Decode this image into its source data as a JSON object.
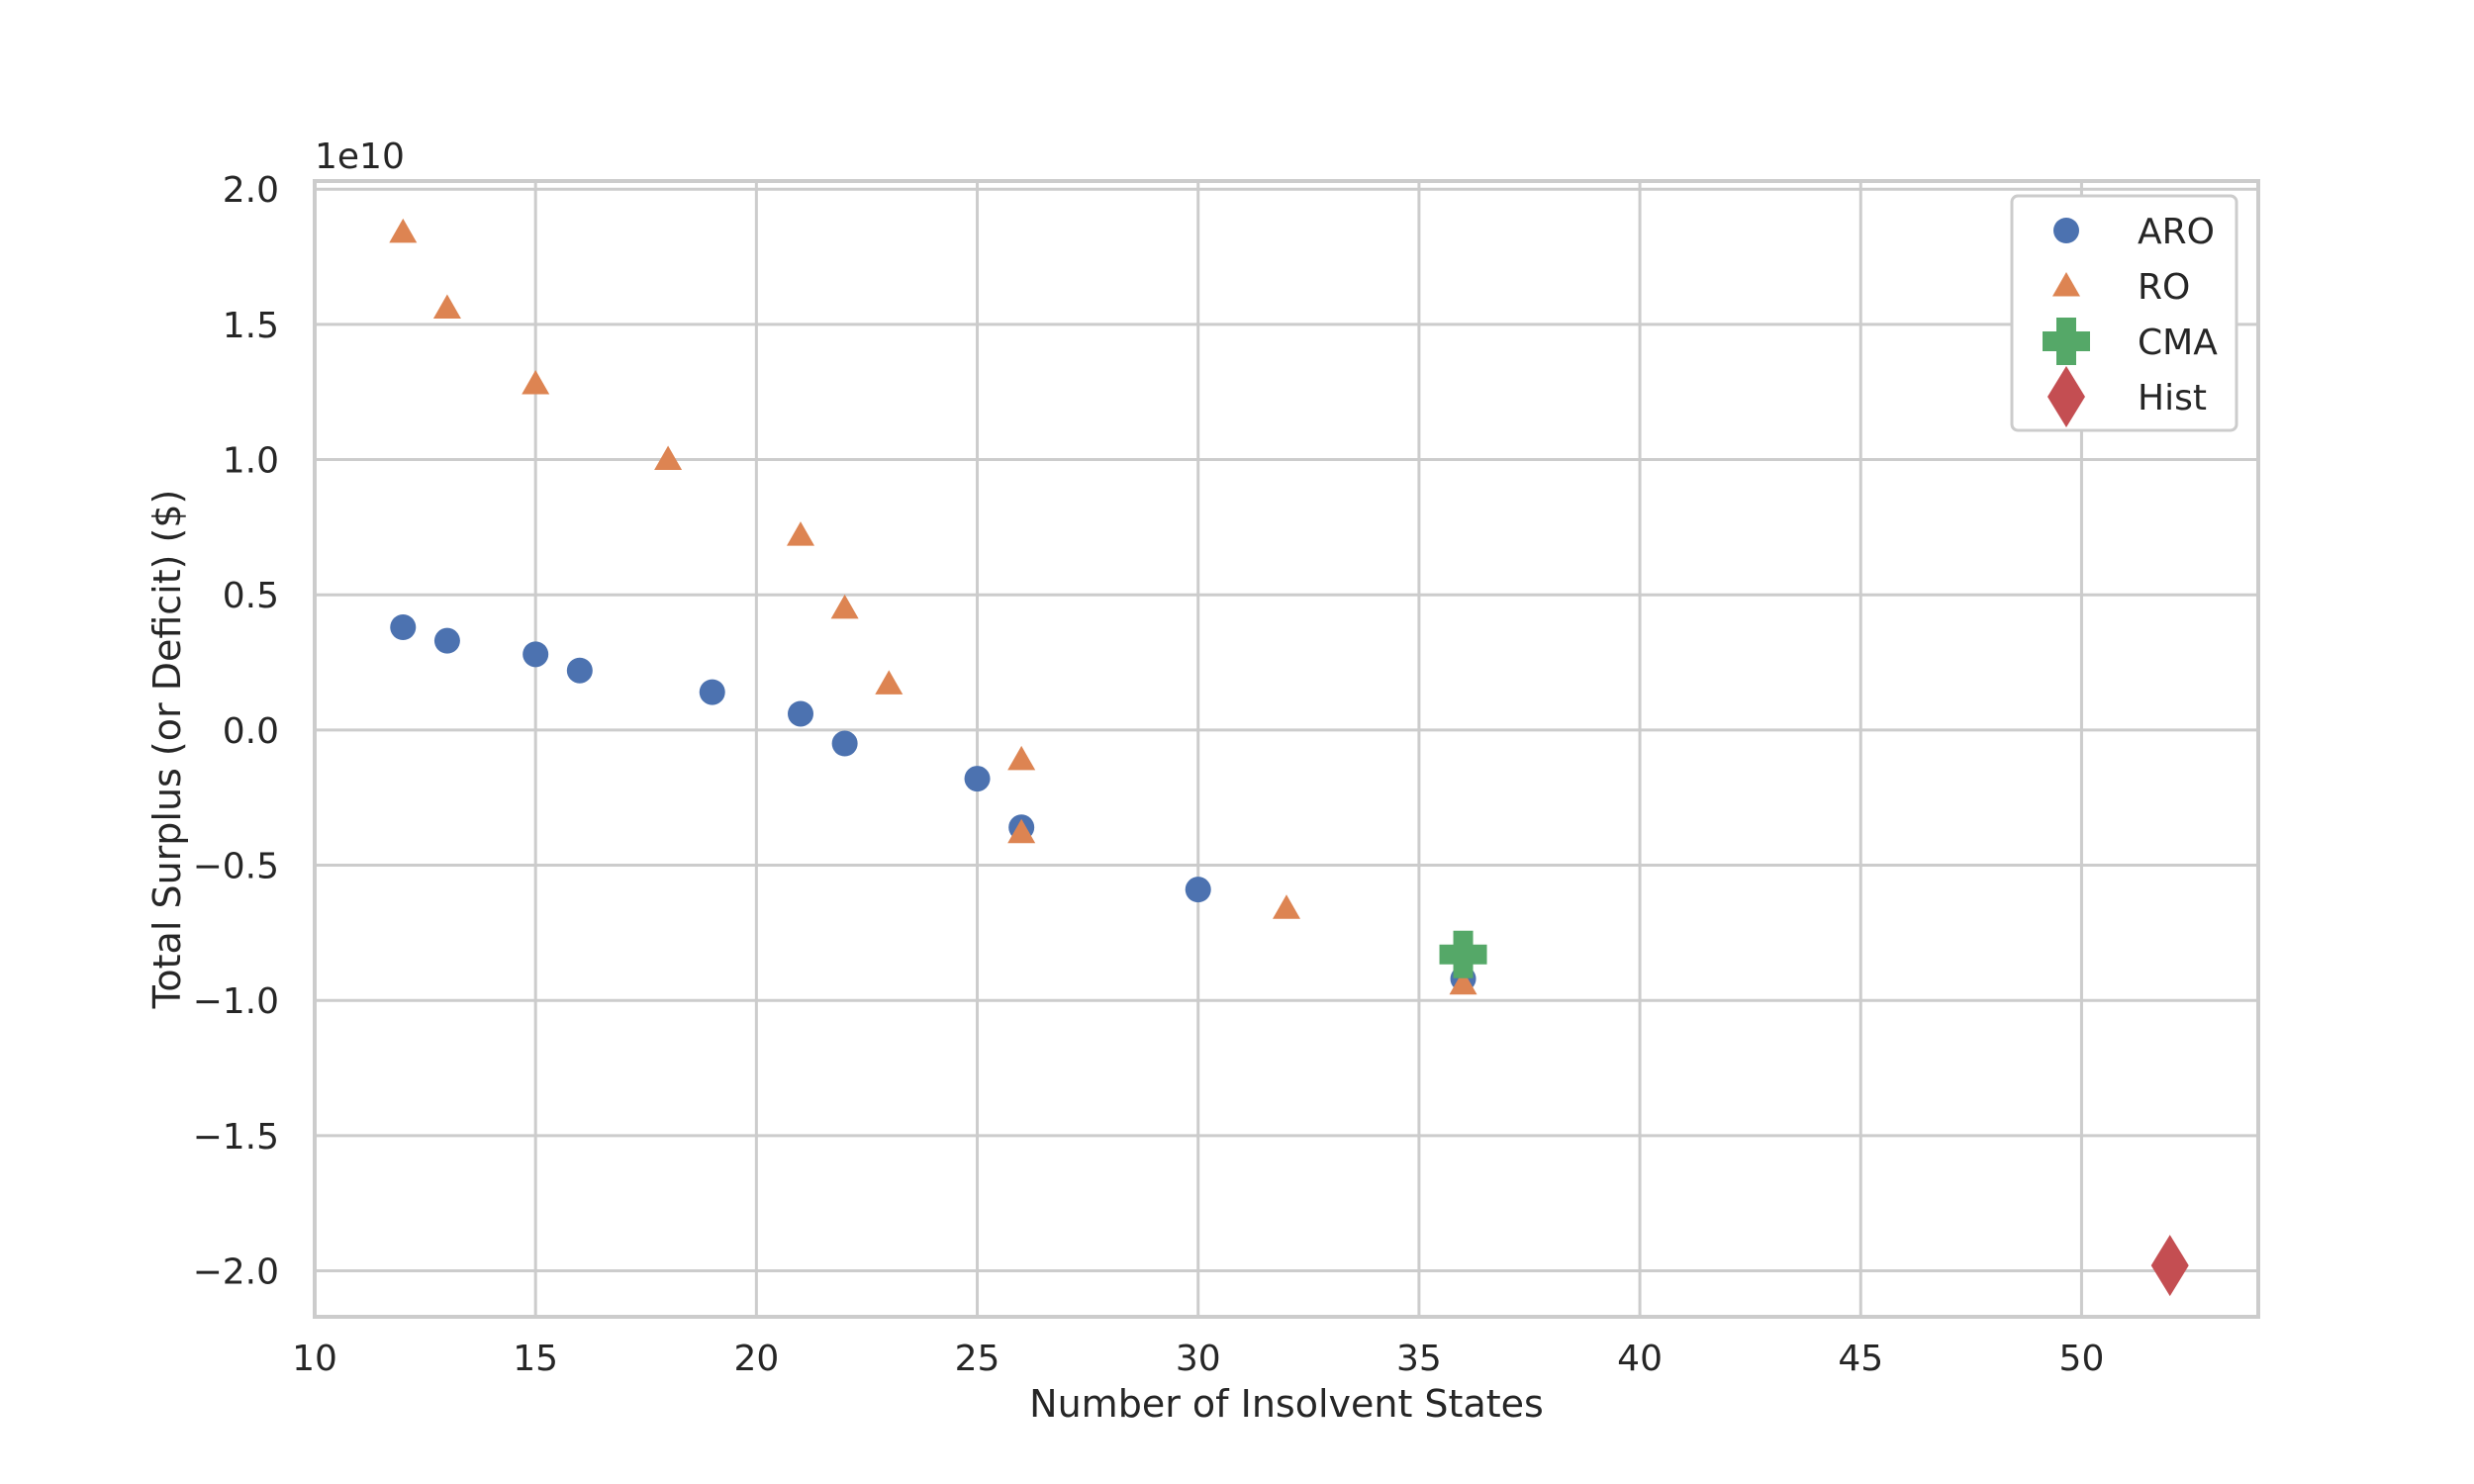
{
  "chart_data": {
    "type": "scatter",
    "xlabel": "Number of Insolvent States",
    "ylabel": "Total Surplus (or Deficit) ($)",
    "y_offset_text": "1e10",
    "xlim": [
      10,
      54
    ],
    "ylim": [
      -2.17,
      2.03
    ],
    "xticks": [
      10,
      15,
      20,
      25,
      30,
      35,
      40,
      45,
      50
    ],
    "yticks": [
      -2.0,
      -1.5,
      -1.0,
      -0.5,
      0.0,
      0.5,
      1.0,
      1.5,
      2.0
    ],
    "ytick_labels": [
      "−2.0",
      "−1.5",
      "−1.0",
      "−0.5",
      "0.0",
      "0.5",
      "1.0",
      "1.5",
      "2.0"
    ],
    "grid": true,
    "legend_position": "top-right",
    "series": [
      {
        "name": "ARO",
        "marker": "circle",
        "color": "#4c72b0",
        "points": [
          [
            12,
            0.38
          ],
          [
            13,
            0.33
          ],
          [
            15,
            0.28
          ],
          [
            16,
            0.22
          ],
          [
            19,
            0.14
          ],
          [
            21,
            0.06
          ],
          [
            22,
            -0.05
          ],
          [
            25,
            -0.18
          ],
          [
            26,
            -0.36
          ],
          [
            30,
            -0.59
          ],
          [
            36,
            -0.92
          ]
        ]
      },
      {
        "name": "RO",
        "marker": "triangle",
        "color": "#dd8452",
        "points": [
          [
            12,
            1.84
          ],
          [
            13,
            1.56
          ],
          [
            15,
            1.28
          ],
          [
            18,
            1.0
          ],
          [
            21,
            0.72
          ],
          [
            22,
            0.45
          ],
          [
            23,
            0.17
          ],
          [
            26,
            -0.11
          ],
          [
            26,
            -0.38
          ],
          [
            32,
            -0.66
          ],
          [
            36,
            -0.94
          ]
        ]
      },
      {
        "name": "CMA",
        "marker": "plus",
        "color": "#55a868",
        "points": [
          [
            36,
            -0.83
          ]
        ]
      },
      {
        "name": "Hist",
        "marker": "diamond",
        "color": "#c44e52",
        "points": [
          [
            52,
            -1.98
          ]
        ]
      }
    ]
  }
}
